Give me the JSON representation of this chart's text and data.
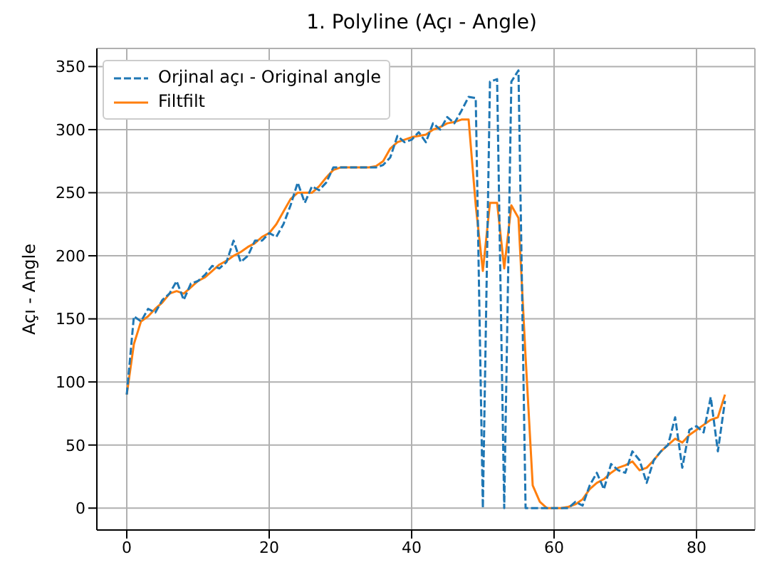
{
  "chart_data": {
    "type": "line",
    "title": "1. Polyline (Açı - Angle)",
    "ylabel": "Açı - Angle",
    "x": [
      0,
      1,
      2,
      3,
      4,
      5,
      6,
      7,
      8,
      9,
      10,
      11,
      12,
      13,
      14,
      15,
      16,
      17,
      18,
      19,
      20,
      21,
      22,
      23,
      24,
      25,
      26,
      27,
      28,
      29,
      30,
      31,
      32,
      33,
      34,
      35,
      36,
      37,
      38,
      39,
      40,
      41,
      42,
      43,
      44,
      45,
      46,
      47,
      48,
      49,
      50,
      51,
      52,
      53,
      54,
      55,
      56,
      57,
      58,
      59,
      60,
      61,
      62,
      63,
      64,
      65,
      66,
      67,
      68,
      69,
      70,
      71,
      72,
      73,
      74,
      75,
      76,
      77,
      78,
      79,
      80,
      81,
      82,
      83,
      84
    ],
    "series": [
      {
        "name": "Orjinal açı - Original angle",
        "color": "#1f77b4",
        "line_style": "dashed",
        "values": [
          90,
          152,
          148,
          158,
          155,
          165,
          170,
          180,
          165,
          178,
          180,
          185,
          192,
          190,
          195,
          212,
          195,
          200,
          212,
          212,
          218,
          215,
          225,
          240,
          258,
          242,
          255,
          252,
          258,
          270,
          270,
          270,
          270,
          270,
          270,
          270,
          272,
          278,
          295,
          290,
          292,
          298,
          290,
          305,
          300,
          310,
          305,
          315,
          326,
          325,
          0,
          338,
          340,
          0,
          338,
          347,
          0,
          0,
          0,
          0,
          0,
          0,
          0,
          5,
          2,
          18,
          28,
          15,
          35,
          30,
          28,
          45,
          38,
          20,
          38,
          45,
          50,
          72,
          32,
          62,
          65,
          60,
          88,
          45,
          85
        ]
      },
      {
        "name": "Filtfilt",
        "color": "#ff7f0e",
        "line_style": "solid",
        "values": [
          90,
          130,
          148,
          152,
          158,
          163,
          170,
          172,
          170,
          175,
          180,
          183,
          188,
          193,
          196,
          200,
          203,
          207,
          210,
          215,
          218,
          225,
          235,
          245,
          250,
          250,
          250,
          255,
          262,
          268,
          270,
          270,
          270,
          270,
          270,
          271,
          275,
          285,
          290,
          292,
          294,
          295,
          296,
          300,
          302,
          305,
          306,
          308,
          308,
          240,
          188,
          242,
          242,
          190,
          240,
          230,
          120,
          18,
          5,
          0,
          0,
          0,
          1,
          3,
          7,
          15,
          20,
          23,
          28,
          32,
          34,
          37,
          30,
          32,
          38,
          45,
          50,
          55,
          52,
          58,
          62,
          66,
          70,
          72,
          90
        ]
      }
    ],
    "xlim": [
      -4.2,
      88.2
    ],
    "xticks": [
      0,
      20,
      40,
      60,
      80
    ],
    "ylim": [
      -17.35,
      364.35
    ],
    "yticks": [
      0,
      50,
      100,
      150,
      200,
      250,
      300,
      350
    ],
    "grid": true,
    "legend": "top left",
    "marker": "none"
  }
}
